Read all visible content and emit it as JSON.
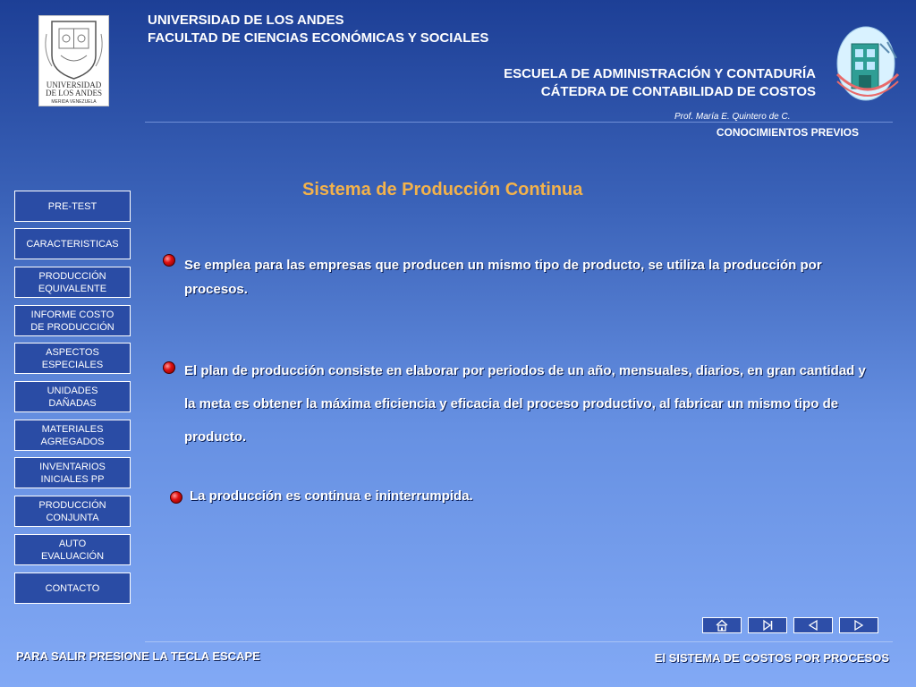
{
  "header": {
    "university": "UNIVERSIDAD DE LOS ANDES",
    "faculty": "FACULTAD DE CIENCIAS ECONÓMICAS Y SOCIALES",
    "school": "ESCUELA DE ADMINISTRACIÓN Y CONTADURÍA",
    "chair": "CÁTEDRA DE CONTABILIDAD DE COSTOS",
    "professor": "Prof. María E. Quintero de C.",
    "section": "CONOCIMIENTOS PREVIOS"
  },
  "logo": {
    "line1": "UNIVERSIDAD",
    "line2": "DE LOS ANDES",
    "line3": "MERIDA VENEZUELA"
  },
  "sidebar": {
    "items": [
      {
        "label": "PRE-TEST"
      },
      {
        "label": "CARACTERISTICAS"
      },
      {
        "label": "PRODUCCIÓN\nEQUIVALENTE"
      },
      {
        "label": "INFORME COSTO\nDE PRODUCCIÓN"
      },
      {
        "label": "ASPECTOS\nESPECIALES"
      },
      {
        "label": "UNIDADES\nDAÑADAS"
      },
      {
        "label": "MATERIALES\nAGREGADOS"
      },
      {
        "label": "INVENTARIOS\nINICIALES PP"
      },
      {
        "label": "PRODUCCIÓN\nCONJUNTA"
      },
      {
        "label": "AUTO\nEVALUACIÓN"
      },
      {
        "label": "CONTACTO"
      }
    ]
  },
  "main": {
    "title": "Sistema de Producción Continua",
    "bullets": [
      "Se emplea  para las empresas que producen un mismo tipo de producto, se utiliza la producción por procesos.",
      "El plan de producción consiste en elaborar  por periodos de un año, mensuales, diarios, en gran cantidad  y la meta es obtener la máxima eficiencia y eficacia del proceso productivo, al fabricar un mismo tipo de producto.",
      "La producción es continua e ininterrumpida."
    ]
  },
  "controls": {
    "icons": [
      "home-icon",
      "skip-to-end-icon",
      "previous-icon",
      "next-icon"
    ]
  },
  "footer": {
    "exit_hint": "PARA SALIR  PRESIONE  LA TECLA ESCAPE",
    "presentation_title": "El SISTEMA DE COSTOS POR PROCESOS"
  },
  "colors": {
    "title": "#f3b24b",
    "bullet": "#e01010",
    "nav_background": "#2a4ca5"
  }
}
